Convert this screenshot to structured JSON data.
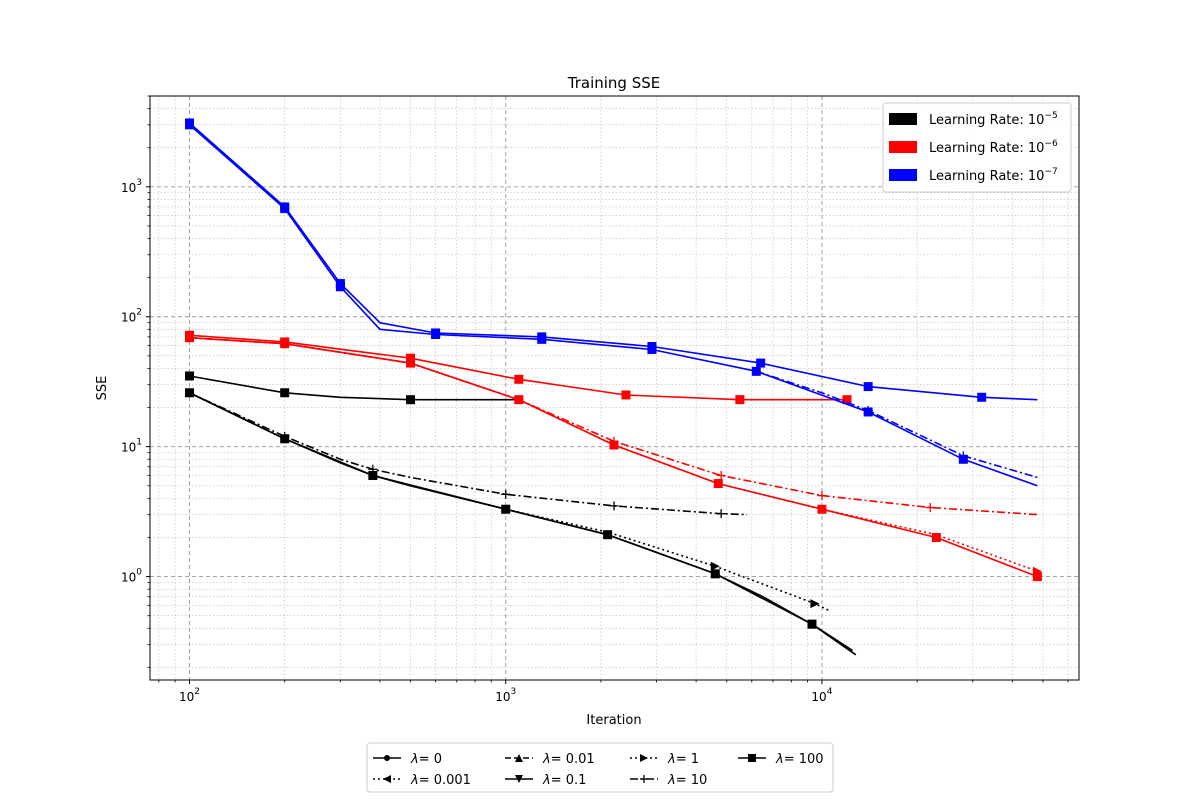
{
  "chart_data": {
    "type": "line",
    "title": "Training SSE",
    "xlabel": "Iteration",
    "ylabel": "SSE",
    "xscale": "log",
    "yscale": "log",
    "xlim": [
      75,
      65000
    ],
    "ylim": [
      0.16,
      5000
    ],
    "grid": true,
    "x_ticks": [
      {
        "value": 100,
        "label": "10",
        "exp": "2"
      },
      {
        "value": 1000,
        "label": "10",
        "exp": "3"
      },
      {
        "value": 10000,
        "label": "10",
        "exp": "4"
      }
    ],
    "y_ticks": [
      {
        "value": 1,
        "label": "10",
        "exp": "0"
      },
      {
        "value": 10,
        "label": "10",
        "exp": "1"
      },
      {
        "value": 100,
        "label": "10",
        "exp": "2"
      },
      {
        "value": 1000,
        "label": "10",
        "exp": "3"
      }
    ],
    "color_legend": {
      "placement": "top-right",
      "entries": [
        {
          "prefix": "Learning Rate: 10",
          "exp": "−5",
          "color": "#000000"
        },
        {
          "prefix": "Learning Rate: 10",
          "exp": "−6",
          "color": "#ff0000"
        },
        {
          "prefix": "Learning Rate: 10",
          "exp": "−7",
          "color": "#0000ff"
        }
      ]
    },
    "marker_legend": {
      "placement": "below plot",
      "entries": [
        {
          "label": "= 0",
          "marker": "dot",
          "dash": "solid"
        },
        {
          "label": "= 0.001",
          "marker": "tri-left",
          "dash": "dotted"
        },
        {
          "label": "= 0.01",
          "marker": "tri-up",
          "dash": "dashed"
        },
        {
          "label": "= 0.1",
          "marker": "tri-down",
          "dash": "solid"
        },
        {
          "label": "= 1",
          "marker": "tri-right",
          "dash": "dotted"
        },
        {
          "label": "= 10",
          "marker": "plus",
          "dash": "dashdot"
        },
        {
          "label": "= 100",
          "marker": "square",
          "dash": "solid"
        }
      ]
    },
    "series": [
      {
        "color": "#000000",
        "dash": "solid",
        "marker": "square",
        "x": [
          100,
          200,
          300,
          500,
          1000,
          1100
        ],
        "y": [
          35,
          26,
          24,
          23,
          23,
          23
        ],
        "markers_at": [
          100,
          200,
          500
        ]
      },
      {
        "color": "#000000",
        "dash": "solid",
        "marker": "square",
        "x": [
          100,
          200,
          300,
          380,
          500,
          1000,
          2100,
          4600,
          6500,
          9300,
          12500
        ],
        "y": [
          26,
          11.5,
          7.5,
          6,
          5,
          3.3,
          2.1,
          1.05,
          0.7,
          0.43,
          0.27
        ],
        "markers_at": [
          100,
          200,
          380,
          1000,
          2100,
          4600,
          9300
        ]
      },
      {
        "color": "#000000",
        "dash": "dotted",
        "marker": "tri-right",
        "x": [
          100,
          200,
          380,
          1000,
          2100,
          4600,
          9500,
          10500
        ],
        "y": [
          26,
          11.5,
          6,
          3.3,
          2.2,
          1.2,
          0.62,
          0.55
        ],
        "markers_at": [
          4600,
          9500
        ]
      },
      {
        "color": "#000000",
        "dash": "solid",
        "marker": "tri-down",
        "x": [
          100,
          200,
          380,
          1000,
          2100,
          4600,
          9300,
          12800
        ],
        "y": [
          26,
          11.5,
          6,
          3.3,
          2.1,
          1.05,
          0.43,
          0.25
        ],
        "markers_at": [
          9300
        ]
      },
      {
        "color": "#000000",
        "dash": "dashdot",
        "marker": "plus",
        "x": [
          100,
          200,
          300,
          380,
          500,
          1000,
          2200,
          4800,
          5800
        ],
        "y": [
          26,
          12,
          8,
          6.7,
          5.8,
          4.3,
          3.5,
          3.05,
          3.0
        ],
        "markers_at": [
          100,
          200,
          380,
          1000,
          2200,
          4800
        ]
      },
      {
        "color": "#ff0000",
        "dash": "solid",
        "marker": "square",
        "x": [
          100,
          200,
          500,
          1100,
          2400,
          5500,
          12000
        ],
        "y": [
          72,
          64,
          48,
          33,
          25,
          23,
          23
        ],
        "markers_at": [
          100,
          200,
          500,
          1100,
          2400,
          5500,
          12000
        ]
      },
      {
        "color": "#ff0000",
        "dash": "solid",
        "marker": "square",
        "x": [
          100,
          200,
          500,
          1100,
          2200,
          4700,
          10000,
          23000,
          48000
        ],
        "y": [
          69,
          62,
          44,
          23,
          10.3,
          5.2,
          3.3,
          2.0,
          1.0
        ],
        "markers_at": [
          100,
          200,
          500,
          1100,
          2200,
          4700,
          10000,
          23000,
          48000
        ]
      },
      {
        "color": "#ff0000",
        "dash": "dotted",
        "marker": "tri-right",
        "x": [
          100,
          200,
          500,
          1100,
          2200,
          4700,
          10000,
          23000,
          48000
        ],
        "y": [
          69,
          62,
          44,
          23,
          10.3,
          5.2,
          3.3,
          2.1,
          1.1
        ],
        "markers_at": [
          48000
        ]
      },
      {
        "color": "#ff0000",
        "dash": "dashdot",
        "marker": "plus",
        "x": [
          100,
          200,
          500,
          1100,
          2200,
          4800,
          10000,
          22000,
          48000
        ],
        "y": [
          69,
          62,
          44,
          23,
          11,
          6,
          4.2,
          3.4,
          3.0
        ],
        "markers_at": [
          1100,
          2200,
          4800,
          10000,
          22000
        ]
      },
      {
        "color": "#0000ff",
        "dash": "solid",
        "marker": "square",
        "x": [
          100,
          200,
          300,
          400,
          600,
          1300,
          2900,
          6400,
          14000,
          32000,
          48000
        ],
        "y": [
          3100,
          700,
          180,
          90,
          75,
          70,
          59,
          44,
          29,
          24,
          23
        ],
        "markers_at": [
          100,
          200,
          300,
          600,
          1300,
          2900,
          6400,
          14000,
          32000
        ]
      },
      {
        "color": "#0000ff",
        "dash": "solid",
        "marker": "square",
        "x": [
          100,
          200,
          300,
          400,
          600,
          1300,
          2900,
          6200,
          14000,
          28000,
          48000
        ],
        "y": [
          3000,
          680,
          170,
          80,
          73,
          67,
          56,
          38,
          18.5,
          8,
          5
        ],
        "markers_at": [
          100,
          200,
          300,
          600,
          1300,
          2900,
          6200,
          14000,
          28000
        ]
      },
      {
        "color": "#0000ff",
        "dash": "dashdot",
        "marker": "plus",
        "x": [
          6200,
          10000,
          14000,
          28000,
          48000
        ],
        "y": [
          38,
          26,
          19,
          8.5,
          5.8
        ],
        "markers_at": [
          14000,
          28000
        ]
      }
    ]
  }
}
